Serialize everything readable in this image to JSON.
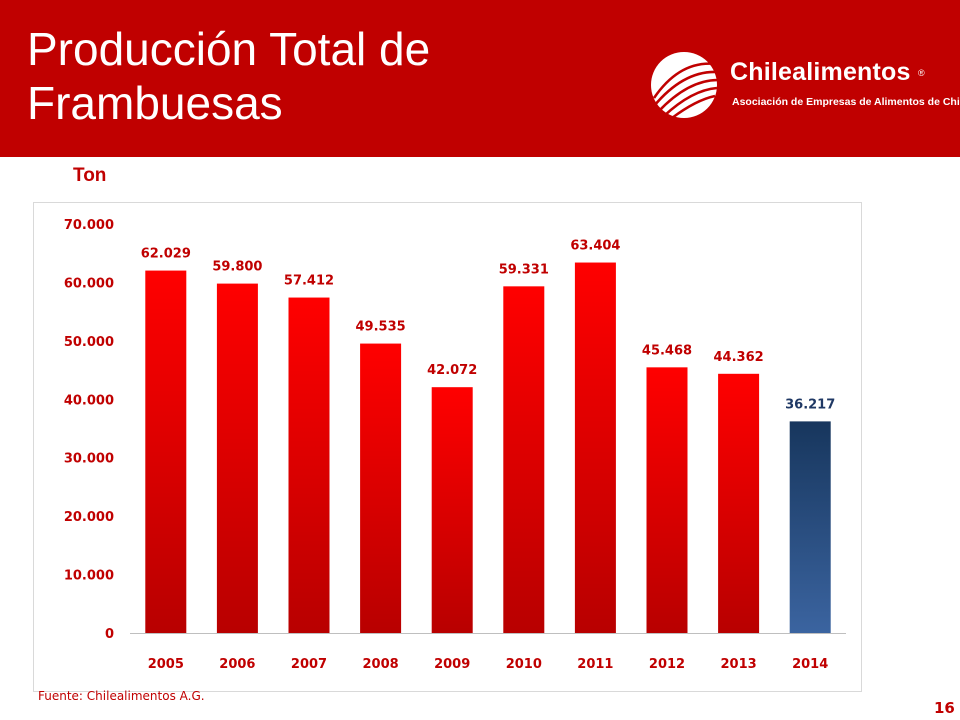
{
  "header": {
    "title_line1": "Producción Total de",
    "title_line2": "Frambuesas",
    "logo": {
      "name": "Chilealimentos",
      "registered": "®",
      "tagline": "Asociación de Empresas de Alimentos de Chile"
    }
  },
  "colors": {
    "header_bg": "#c00000",
    "text_red": "#c00000",
    "bar_red": "#ff0000",
    "bar_blue": "#1f3864"
  },
  "chart_data": {
    "type": "bar",
    "title": "",
    "ylabel": "Ton",
    "xlabel": "",
    "categories": [
      "2005",
      "2006",
      "2007",
      "2008",
      "2009",
      "2010",
      "2011",
      "2012",
      "2013",
      "2014"
    ],
    "values": [
      62029,
      59800,
      57412,
      49535,
      42072,
      59331,
      63404,
      45468,
      44362,
      36217
    ],
    "value_labels": [
      "62.029",
      "59.800",
      "57.412",
      "49.535",
      "42.072",
      "59.331",
      "63.404",
      "45.468",
      "44.362",
      "36.217"
    ],
    "highlight_last_color": "blue",
    "ylim": [
      0,
      70000
    ],
    "yticks": [
      0,
      10000,
      20000,
      30000,
      40000,
      50000,
      60000,
      70000
    ],
    "ytick_labels": [
      "0",
      "10.000",
      "20.000",
      "30.000",
      "40.000",
      "50.000",
      "60.000",
      "70.000"
    ],
    "grid": false,
    "legend": "none"
  },
  "footer": {
    "source": "Fuente: Chilealimentos A.G.",
    "page_number": "16"
  }
}
